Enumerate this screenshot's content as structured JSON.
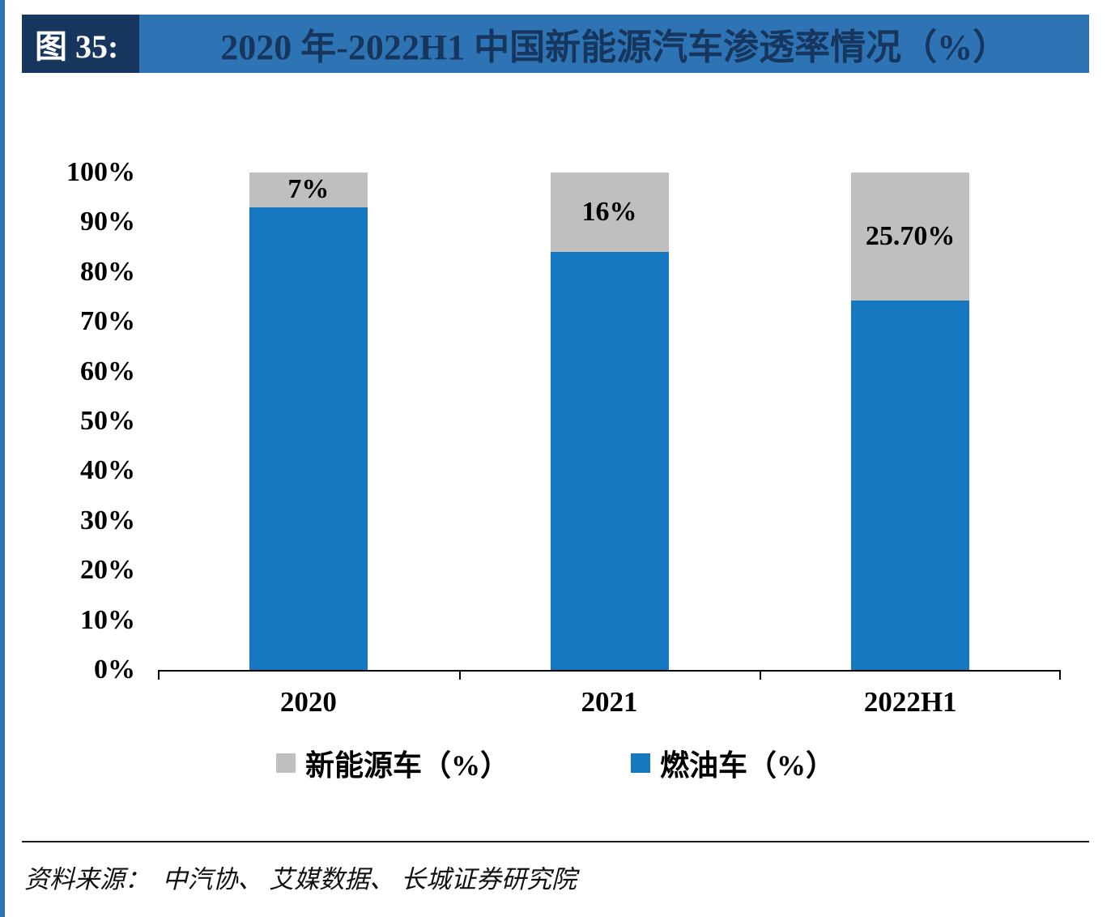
{
  "colors": {
    "accent_blue": "#2E74B5",
    "navy": "#17365D",
    "bar_blue": "#1778C2",
    "bar_gray": "#BFBFBF"
  },
  "header": {
    "figure_label": "图 35:",
    "title": "2020 年-2022H1 中国新能源汽车渗透率情况（%）"
  },
  "chart_data": {
    "type": "bar",
    "stacked": true,
    "title": "2020 年-2022H1 中国新能源汽车渗透率情况（%）",
    "categories": [
      "2020",
      "2021",
      "2022H1"
    ],
    "series": [
      {
        "name": "新能源车（%）",
        "color": "#BFBFBF",
        "values": [
          7,
          16,
          25.7
        ],
        "labels": [
          "7%",
          "16%",
          "25.70%"
        ]
      },
      {
        "name": "燃油车（%）",
        "color": "#1778C2",
        "values": [
          93,
          84,
          74.3
        ]
      }
    ],
    "xlabel": "",
    "ylabel": "",
    "ylim": [
      0,
      100
    ],
    "ytick_step": 10,
    "ytick_labels": [
      "100%",
      "90%",
      "80%",
      "70%",
      "60%",
      "50%",
      "40%",
      "30%",
      "20%",
      "10%",
      "0%"
    ],
    "grid": false,
    "legend_position": "bottom"
  },
  "footer": {
    "source": "资料来源：  中汽协、 艾媒数据、 长城证券研究院"
  }
}
